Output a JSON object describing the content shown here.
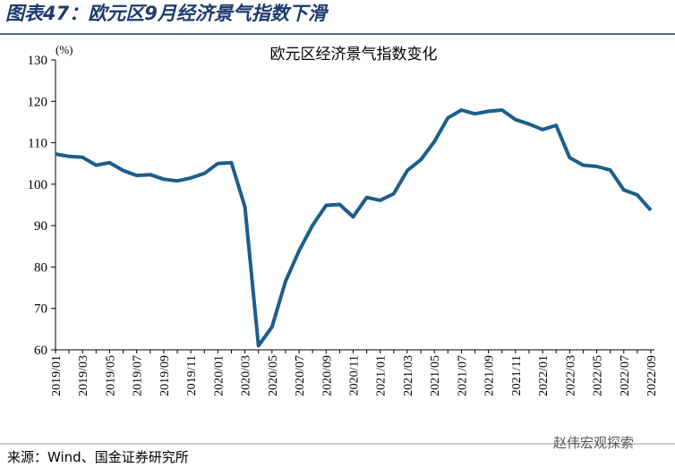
{
  "header": {
    "title": "图表47：欧元区9月经济景气指数下滑"
  },
  "chart_data": {
    "type": "line",
    "title": "欧元区经济景气指数变化",
    "y_unit": "(%)",
    "categories": [
      "2019/01",
      null,
      "2019/03",
      null,
      "2019/05",
      null,
      "2019/07",
      null,
      "2019/09",
      null,
      "2019/11",
      null,
      "2020/01",
      null,
      "2020/03",
      null,
      "2020/05",
      null,
      "2020/07",
      null,
      "2020/09",
      null,
      "2020/11",
      null,
      "2021/01",
      null,
      "2021/03",
      null,
      "2021/05",
      null,
      "2021/07",
      null,
      "2021/09",
      null,
      "2021/11",
      null,
      "2022/01",
      null,
      "2022/03",
      null,
      "2022/05",
      null,
      "2022/07",
      null,
      "2022/09"
    ],
    "series": [
      {
        "name": "欧元区经济景气指数",
        "color": "#1b5e8c",
        "values": [
          107.3,
          106.7,
          106.5,
          104.6,
          105.2,
          103.3,
          102.1,
          102.3,
          101.2,
          100.8,
          101.5,
          102.6,
          105.0,
          105.2,
          94.5,
          61.0,
          65.5,
          76.5,
          83.9,
          90.1,
          94.9,
          95.1,
          92.1,
          96.8,
          96.1,
          97.7,
          103.3,
          105.9,
          110.3,
          116.0,
          117.9,
          117.0,
          117.6,
          117.9,
          115.6,
          114.5,
          113.2,
          114.2,
          106.4,
          104.6,
          104.3,
          103.4,
          98.6,
          97.4,
          93.7
        ]
      }
    ],
    "ylim": [
      60,
      130
    ],
    "yticks": [
      60,
      70,
      80,
      90,
      100,
      110,
      120,
      130
    ],
    "legend": false,
    "grid": false
  },
  "footer": {
    "source": "来源：Wind、国金证券研究所",
    "watermark": "赵伟宏观探索"
  }
}
